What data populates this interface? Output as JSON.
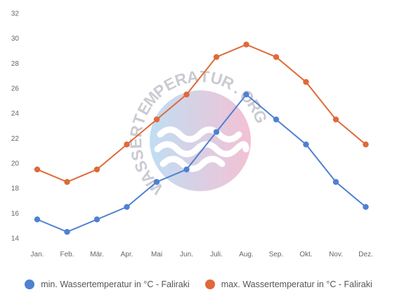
{
  "chart_data": {
    "type": "line",
    "categories": [
      "Jan.",
      "Feb.",
      "Mär.",
      "Apr.",
      "Mai",
      "Jun.",
      "Juli.",
      "Aug.",
      "Sep.",
      "Okt.",
      "Nov.",
      "Dez."
    ],
    "ylim": [
      14,
      32
    ],
    "yticks": [
      14,
      16,
      18,
      20,
      22,
      24,
      26,
      28,
      30,
      32
    ],
    "grid": false,
    "legend_position": "bottom",
    "series": [
      {
        "name": "min. Wassertemperatur in °C - Faliraki",
        "color": "#4f81d2",
        "values": [
          15.5,
          14.5,
          15.5,
          16.5,
          18.5,
          19.5,
          22.5,
          25.5,
          23.5,
          21.5,
          18.5,
          16.5
        ]
      },
      {
        "name": "max. Wassertemperatur in °C - Faliraki",
        "color": "#e0693a",
        "values": [
          19.5,
          18.5,
          19.5,
          21.5,
          23.5,
          25.5,
          28.5,
          29.5,
          28.5,
          26.5,
          23.5,
          21.5
        ]
      }
    ]
  },
  "watermark": {
    "text": "WASSERTEMPERATUR.ORG"
  }
}
